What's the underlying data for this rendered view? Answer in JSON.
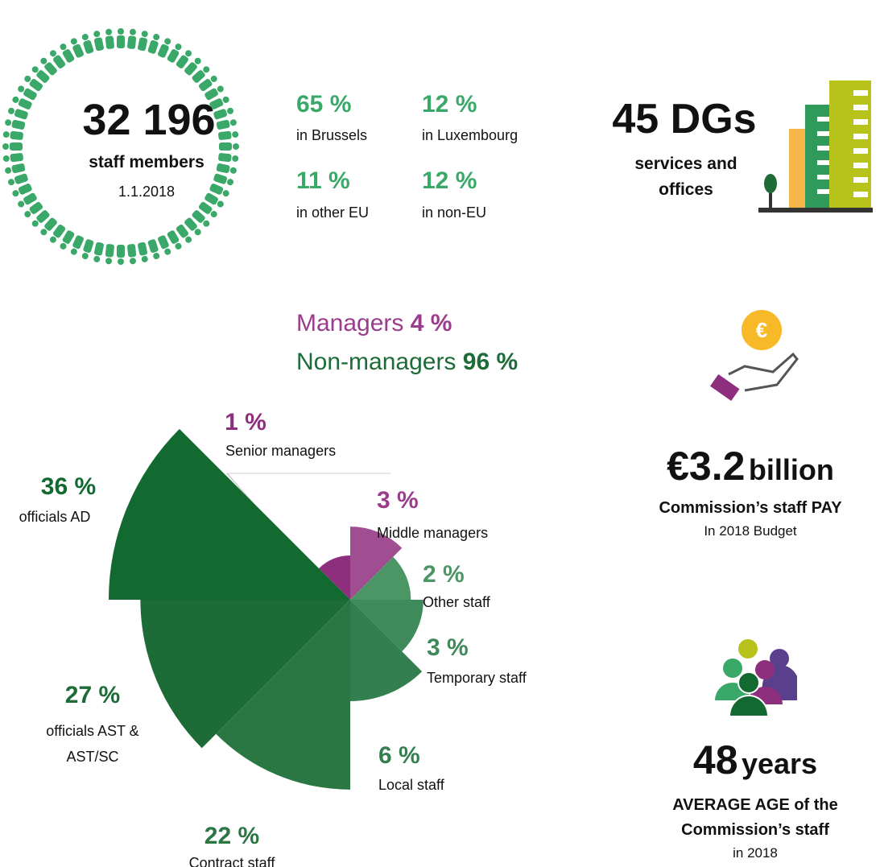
{
  "headline": {
    "count": "32 196",
    "label": "staff members",
    "date": "1.1.2018"
  },
  "locations": [
    {
      "value": "65 %",
      "label": "in Brussels"
    },
    {
      "value": "12 %",
      "label": "in Luxembourg"
    },
    {
      "value": "11 %",
      "label": "in other EU"
    },
    {
      "value": "12 %",
      "label": "in non-EU"
    }
  ],
  "dgs": {
    "value": "45 DGs",
    "label": "services and offices"
  },
  "split": {
    "managers": "Managers",
    "managers_value": "4 %",
    "non_managers": "Non-managers",
    "non_managers_value": "96 %"
  },
  "pay": {
    "value": "€3.2",
    "unit": "billion",
    "label": "Commission’s staff PAY",
    "note": "In 2018 Budget"
  },
  "age": {
    "value": "48",
    "unit": "years",
    "label": "AVERAGE AGE of the Commission’s staff",
    "note": "in 2018"
  },
  "chart_data": {
    "type": "rose",
    "categories": [
      "Senior managers",
      "Middle managers",
      "Other staff",
      "Temporary staff",
      "Local staff",
      "Contract staff",
      "officials AST & AST/SC",
      "officials AD"
    ],
    "values": [
      1,
      3,
      2,
      3,
      6,
      22,
      27,
      36
    ],
    "value_labels": [
      "1 %",
      "3 %",
      "2 %",
      "3 %",
      "6 %",
      "22 %",
      "27 %",
      "36 %"
    ],
    "colors": [
      "#8e2f7e",
      "#a04d91",
      "#4c9565",
      "#3f8a5a",
      "#347f4f",
      "#2b7744",
      "#1d6b37",
      "#126a31"
    ]
  }
}
